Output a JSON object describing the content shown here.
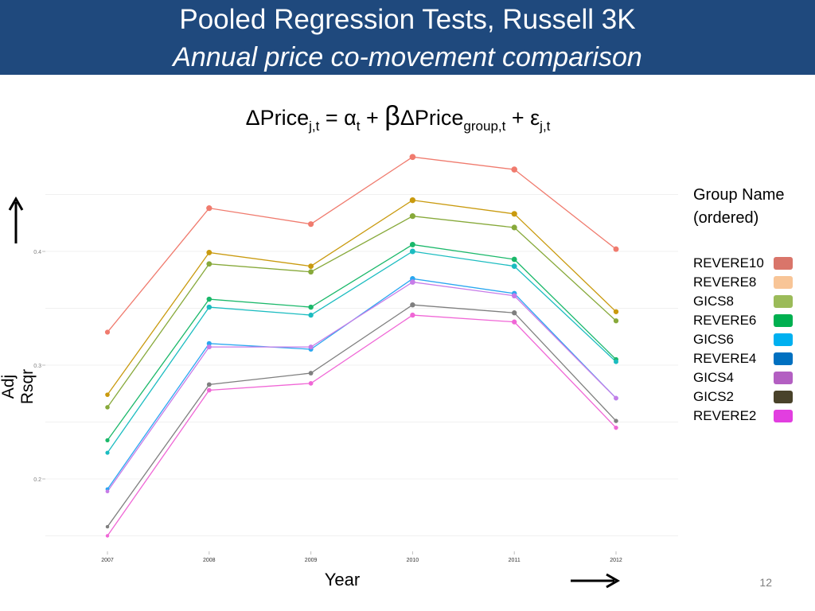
{
  "header": {
    "title": "Pooled Regression Tests, Russell 3K",
    "subtitle": "Annual price co-movement comparison"
  },
  "formula": {
    "delta_price": "ΔPrice",
    "sub_jt": "j,t",
    "equals_alpha": " = α",
    "sub_t": "t",
    "plus": " + ",
    "beta": "β",
    "delta_price2": "ΔPrice",
    "sub_group": "group,t",
    "plus_eps": " + ε",
    "sub_jt2": "j,t"
  },
  "legend": {
    "title": "Group Name",
    "subtitle": "(ordered)",
    "items": [
      {
        "label": "REVERE10",
        "color": "#d9756a"
      },
      {
        "label": "REVERE8",
        "color": "#f8c597"
      },
      {
        "label": "GICS8",
        "color": "#9bbb59"
      },
      {
        "label": "REVERE6",
        "color": "#00b050"
      },
      {
        "label": "GICS6",
        "color": "#00b0f0"
      },
      {
        "label": "REVERE4",
        "color": "#0070c0"
      },
      {
        "label": "GICS4",
        "color": "#b35fc2"
      },
      {
        "label": "GICS2",
        "color": "#49422a"
      },
      {
        "label": "REVERE2",
        "color": "#e23ee0"
      }
    ]
  },
  "page_number": "12",
  "chart_data": {
    "type": "line",
    "xlabel": "Year",
    "ylabel": "Adj Rsqr",
    "categories": [
      "2007",
      "2008",
      "2009",
      "2010",
      "2011",
      "2012"
    ],
    "yticks": [
      "0.2",
      "0.3",
      "0.4"
    ],
    "ylim": [
      0.15,
      0.45
    ],
    "grid": true,
    "legend_position": "right",
    "series": [
      {
        "color": "#f07b6e",
        "values": [
          0.329,
          0.438,
          0.424,
          0.483,
          0.472,
          0.402
        ]
      },
      {
        "color": "#c99a0e",
        "values": [
          0.274,
          0.399,
          0.387,
          0.445,
          0.433,
          0.347
        ]
      },
      {
        "color": "#87a93a",
        "values": [
          0.263,
          0.389,
          0.382,
          0.431,
          0.421,
          0.339
        ]
      },
      {
        "color": "#1ab86a",
        "values": [
          0.234,
          0.358,
          0.351,
          0.406,
          0.393,
          0.305
        ]
      },
      {
        "color": "#1bbcc0",
        "values": [
          0.223,
          0.351,
          0.344,
          0.4,
          0.387,
          0.303
        ]
      },
      {
        "color": "#2aa7f0",
        "values": [
          0.191,
          0.319,
          0.314,
          0.376,
          0.363,
          0.271
        ]
      },
      {
        "color": "#c77ce8",
        "values": [
          0.189,
          0.316,
          0.316,
          0.373,
          0.361,
          0.271
        ]
      },
      {
        "color": "#7f7f7f",
        "values": [
          0.158,
          0.283,
          0.293,
          0.353,
          0.346,
          0.251
        ]
      },
      {
        "color": "#f066d6",
        "values": [
          0.15,
          0.278,
          0.284,
          0.344,
          0.338,
          0.245
        ]
      }
    ]
  }
}
